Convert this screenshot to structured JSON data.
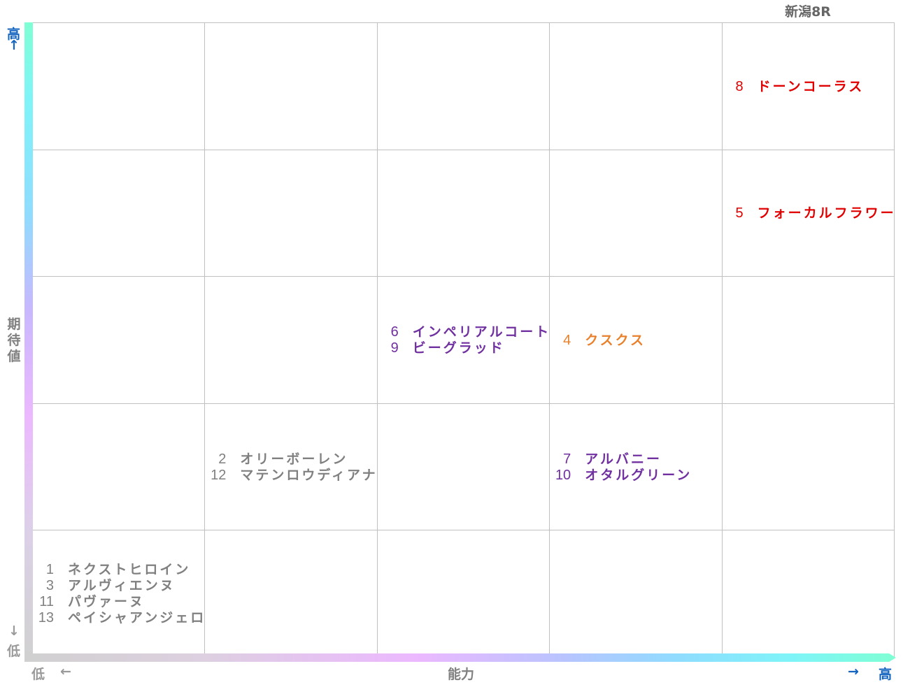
{
  "title": "新潟8R",
  "axes": {
    "y_label": "期待値",
    "y_high": "高",
    "y_high_arrow": "↑",
    "y_low": "低",
    "y_low_arrow": "↓",
    "x_label": "能力",
    "x_low": "低",
    "x_low_arrow": "←",
    "x_high": "高",
    "x_high_arrow": "→"
  },
  "colors": {
    "red": "#e00000",
    "purple": "#7030a0",
    "orange": "#e8802c",
    "gray": "#808080",
    "axis_blue": "#1565c0"
  },
  "cells": [
    {
      "col": 4,
      "row": 0,
      "color": "red",
      "entries": [
        {
          "num": "8",
          "name": "ドーンコーラス"
        }
      ]
    },
    {
      "col": 4,
      "row": 1,
      "color": "red",
      "entries": [
        {
          "num": "5",
          "name": "フォーカルフラワー"
        }
      ]
    },
    {
      "col": 2,
      "row": 2,
      "color": "purple",
      "entries": [
        {
          "num": "6",
          "name": "インペリアルコート"
        },
        {
          "num": "9",
          "name": "ビーグラッド"
        }
      ]
    },
    {
      "col": 3,
      "row": 2,
      "color": "orange",
      "entries": [
        {
          "num": "4",
          "name": "クスクス"
        }
      ]
    },
    {
      "col": 1,
      "row": 3,
      "color": "gray",
      "entries": [
        {
          "num": "2",
          "name": "オリーボーレン"
        },
        {
          "num": "12",
          "name": "マテンロウディアナ"
        }
      ]
    },
    {
      "col": 3,
      "row": 3,
      "color": "purple",
      "entries": [
        {
          "num": "7",
          "name": "アルバニー"
        },
        {
          "num": "10",
          "name": "オタルグリーン"
        }
      ]
    },
    {
      "col": 0,
      "row": 4,
      "color": "gray",
      "entries": [
        {
          "num": "1",
          "name": "ネクストヒロイン"
        },
        {
          "num": "3",
          "name": "アルヴィエンヌ"
        },
        {
          "num": "11",
          "name": "パヴァーヌ"
        },
        {
          "num": "13",
          "name": "ペイシャアンジェロ"
        }
      ]
    }
  ]
}
